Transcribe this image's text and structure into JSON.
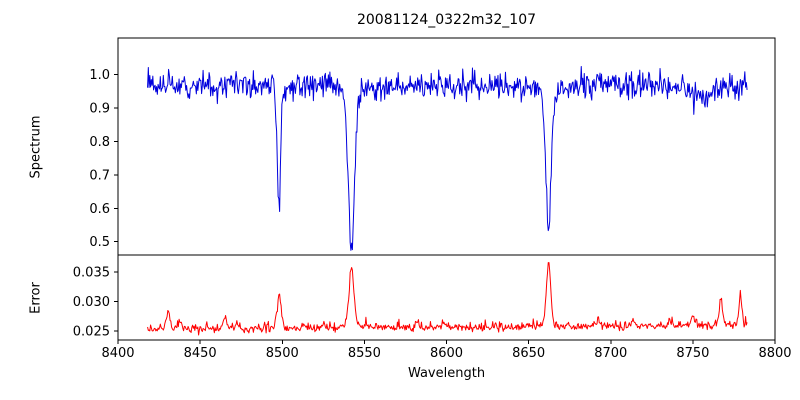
{
  "chart_data": {
    "type": "line",
    "title": "20081124_0322m32_107",
    "xlabel": "Wavelength",
    "xlim": [
      8400,
      8800
    ],
    "xtick_values": [
      8400,
      8450,
      8500,
      8550,
      8600,
      8650,
      8700,
      8750,
      8800
    ],
    "xtick_labels": [
      "8400",
      "8450",
      "8500",
      "8550",
      "8600",
      "8650",
      "8700",
      "8750",
      "8800"
    ],
    "legend": "none",
    "grid": false,
    "subplots": [
      {
        "ylabel": "Spectrum",
        "color": "#0000dd",
        "ylim": [
          0.46,
          1.11
        ],
        "ytick_values": [
          0.5,
          0.6,
          0.7,
          0.8,
          0.9,
          1.0
        ],
        "ytick_labels": [
          "0.5",
          "0.6",
          "0.7",
          "0.8",
          "0.9",
          "1.0"
        ],
        "model": {
          "x_start": 8418,
          "x_end": 8783,
          "n_points": 800,
          "continuum": 0.97,
          "noise_sigma": 0.02,
          "absorption_lines": [
            {
              "center": 8498.0,
              "min": 0.6,
              "width": 1.1
            },
            {
              "center": 8542.1,
              "min": 0.47,
              "width": 2.0
            },
            {
              "center": 8662.1,
              "min": 0.51,
              "width": 1.6
            }
          ],
          "broad_dips": [
            {
              "center": 8443,
              "depth": 0.045,
              "width": 0.8
            },
            {
              "center": 8757,
              "depth": 0.04,
              "width": 9
            }
          ]
        }
      },
      {
        "ylabel": "Error",
        "color": "#ff0000",
        "ylim": [
          0.0235,
          0.0379
        ],
        "ytick_values": [
          0.025,
          0.03,
          0.035
        ],
        "ytick_labels": [
          "0.025",
          "0.030",
          "0.035"
        ],
        "model": {
          "x_start": 8418,
          "x_end": 8783,
          "n_points": 800,
          "baseline_start": 0.0249,
          "baseline_end": 0.0256,
          "noise_sigma": 0.0006,
          "peaks": [
            {
              "center": 8430.5,
              "height": 0.003,
              "width": 1.3
            },
            {
              "center": 8438.0,
              "height": 0.0012,
              "width": 1.0
            },
            {
              "center": 8465.0,
              "height": 0.002,
              "width": 1.3
            },
            {
              "center": 8473.0,
              "height": 0.001,
              "width": 1.0
            },
            {
              "center": 8498.2,
              "height": 0.0062,
              "width": 1.1
            },
            {
              "center": 8513.0,
              "height": 0.0008,
              "width": 1.0
            },
            {
              "center": 8542.2,
              "height": 0.0106,
              "width": 1.5
            },
            {
              "center": 8582.0,
              "height": 0.001,
              "width": 1.0
            },
            {
              "center": 8598.0,
              "height": 0.0008,
              "width": 1.0
            },
            {
              "center": 8662.2,
              "height": 0.0112,
              "width": 1.3
            },
            {
              "center": 8692.0,
              "height": 0.001,
              "width": 1.0
            },
            {
              "center": 8713.0,
              "height": 0.0008,
              "width": 1.0
            },
            {
              "center": 8736.0,
              "height": 0.001,
              "width": 1.0
            },
            {
              "center": 8750.0,
              "height": 0.0016,
              "width": 1.2
            },
            {
              "center": 8767.0,
              "height": 0.005,
              "width": 0.9
            },
            {
              "center": 8779.0,
              "height": 0.0052,
              "width": 0.9
            }
          ]
        }
      }
    ]
  }
}
